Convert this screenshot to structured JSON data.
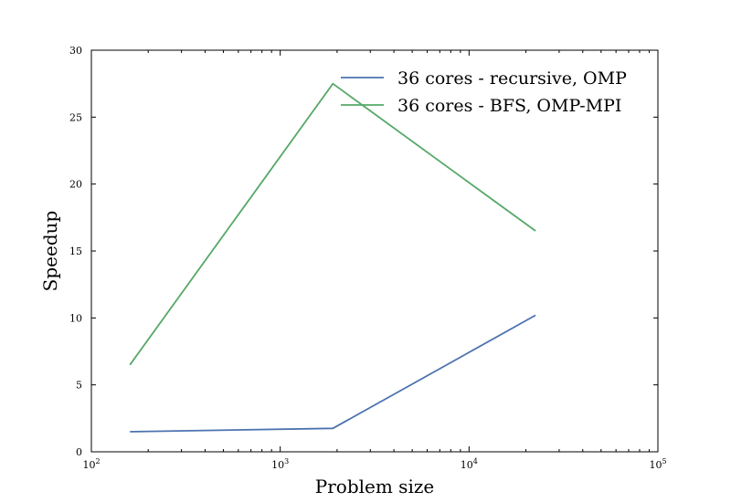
{
  "chart_data": {
    "type": "line",
    "xlabel": "Problem size",
    "ylabel": "Speedup",
    "xscale": "log",
    "xlim": [
      100,
      100000
    ],
    "ylim": [
      0,
      30
    ],
    "x_ticks": [
      {
        "value": 100,
        "base": "10",
        "exp": "2"
      },
      {
        "value": 1000,
        "base": "10",
        "exp": "3"
      },
      {
        "value": 10000,
        "base": "10",
        "exp": "4"
      },
      {
        "value": 100000,
        "base": "10",
        "exp": "5"
      }
    ],
    "y_ticks": [
      0,
      5,
      10,
      15,
      20,
      25,
      30
    ],
    "grid": false,
    "legend_position": "top-right",
    "series": [
      {
        "name": "36 cores - recursive, OMP",
        "color": "#4c72b0",
        "x": [
          160,
          1900,
          22500
        ],
        "values": [
          1.5,
          1.75,
          10.2
        ]
      },
      {
        "name": "36 cores - BFS, OMP-MPI",
        "color": "#55a868",
        "x": [
          160,
          1900,
          22500
        ],
        "values": [
          6.5,
          27.5,
          16.5
        ]
      }
    ]
  }
}
